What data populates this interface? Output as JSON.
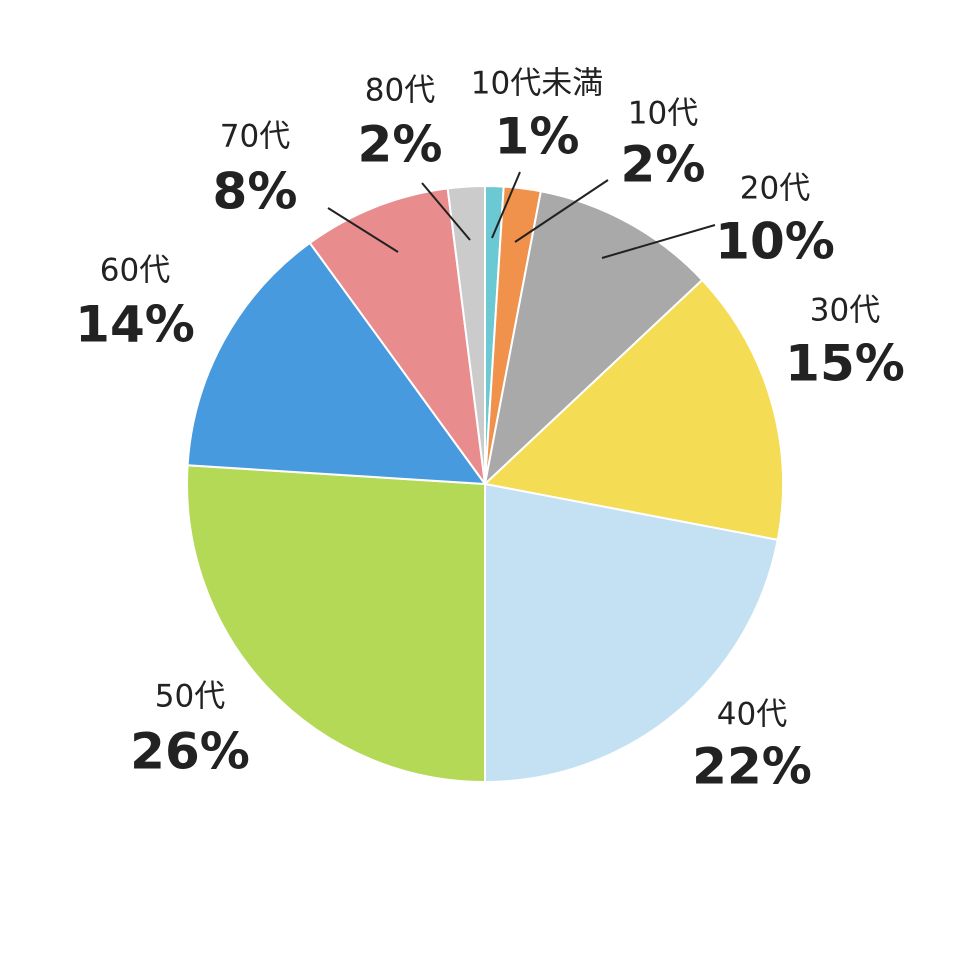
{
  "chart_data": {
    "type": "pie",
    "categories": [
      "10代未満",
      "10代",
      "20代",
      "30代",
      "40代",
      "50代",
      "60代",
      "70代",
      "80代"
    ],
    "values": [
      1,
      2,
      10,
      15,
      22,
      26,
      14,
      8,
      2
    ],
    "value_labels": [
      "1%",
      "2%",
      "10%",
      "15%",
      "22%",
      "26%",
      "14%",
      "8%",
      "2%"
    ],
    "colors": [
      "#6cc8d2",
      "#f0924c",
      "#a9a9a9",
      "#f4dc55",
      "#c3e1f2",
      "#b4d957",
      "#489ade",
      "#e88c8e",
      "#cbcbcb"
    ]
  }
}
